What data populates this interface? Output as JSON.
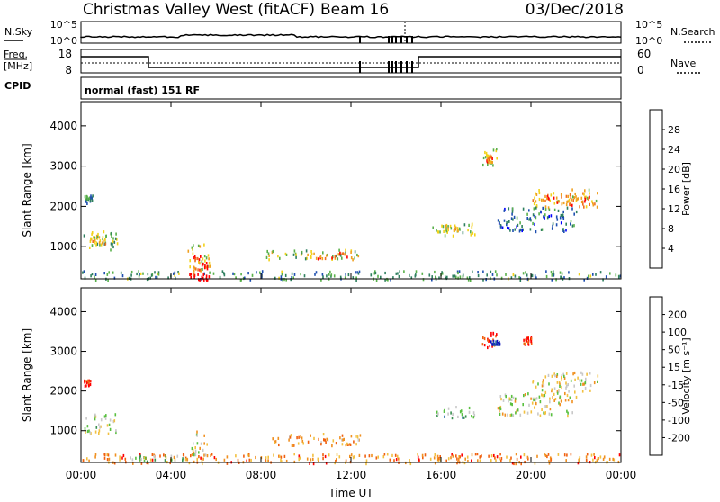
{
  "header": {
    "title": "Christmas Valley West (fitACF)",
    "beam": "Beam 16",
    "date": "03/Dec/2018"
  },
  "top_panels": {
    "nsky_label": "N.Sky",
    "nsearch_label": "N.Search",
    "nsky_ticks": [
      "10^5",
      "10^0"
    ],
    "nsearch_ticks": [
      "10^5",
      "10^0"
    ],
    "freq_label_1": "Freq.",
    "freq_label_2": "[MHz]",
    "freq_ticks": [
      "18",
      "8"
    ],
    "nave_label": "Nave",
    "nave_ticks": [
      "60",
      "0"
    ],
    "cpid_label": "CPID",
    "cpid_text": "normal (fast) 151 RF"
  },
  "chart_data": [
    {
      "type": "heatmap",
      "name": "power",
      "ylabel": "Slant Range [km]",
      "xlabel": "",
      "xlim": [
        0,
        24
      ],
      "ylim": [
        200,
        4600
      ],
      "xticks": [
        "00:00",
        "04:00",
        "08:00",
        "12:00",
        "16:00",
        "20:00",
        "00:00"
      ],
      "xtick_values": [
        0,
        4,
        8,
        12,
        16,
        20,
        24
      ],
      "yticks": [
        "1000",
        "2000",
        "3000",
        "4000"
      ],
      "ytick_values": [
        1000,
        2000,
        3000,
        4000
      ],
      "colorbar": {
        "label": "Power [dB]",
        "ticks": [
          "28",
          "24",
          "20",
          "16",
          "12",
          "8",
          "4"
        ],
        "colors": [
          "#0000ff",
          "#1e4fb0",
          "#2f7f5f",
          "#59b04a",
          "#f2d21a",
          "#f0a020",
          "#f07020",
          "#ff0000"
        ]
      },
      "regions": [
        {
          "t0": 0.1,
          "t1": 1.6,
          "r0": 950,
          "r1": 1450,
          "level": 0.45
        },
        {
          "t0": 0.4,
          "t1": 1.2,
          "r0": 1050,
          "r1": 1300,
          "level": 0.6
        },
        {
          "t0": 0.1,
          "t1": 0.5,
          "r0": 2100,
          "r1": 2300,
          "level": 0.3
        },
        {
          "t0": 4.7,
          "t1": 5.7,
          "r0": 400,
          "r1": 1100,
          "level": 0.55
        },
        {
          "t0": 5.0,
          "t1": 5.6,
          "r0": 400,
          "r1": 800,
          "level": 0.9
        },
        {
          "t0": 8.2,
          "t1": 12.4,
          "r0": 700,
          "r1": 950,
          "level": 0.5
        },
        {
          "t0": 10.0,
          "t1": 12.0,
          "r0": 720,
          "r1": 880,
          "level": 0.8
        },
        {
          "t0": 15.6,
          "t1": 17.5,
          "r0": 1300,
          "r1": 1600,
          "level": 0.45
        },
        {
          "t0": 16.0,
          "t1": 16.8,
          "r0": 1400,
          "r1": 1550,
          "level": 0.6
        },
        {
          "t0": 17.8,
          "t1": 18.5,
          "r0": 3000,
          "r1": 3500,
          "level": 0.55
        },
        {
          "t0": 18.0,
          "t1": 18.3,
          "r0": 3100,
          "r1": 3300,
          "level": 0.75
        },
        {
          "t0": 20.0,
          "t1": 23.0,
          "r0": 2000,
          "r1": 2450,
          "level": 0.65
        },
        {
          "t0": 20.5,
          "t1": 22.7,
          "r0": 2050,
          "r1": 2350,
          "level": 0.85
        },
        {
          "t0": 18.5,
          "t1": 22.0,
          "r0": 1400,
          "r1": 2000,
          "level": 0.25
        },
        {
          "t0": 0.0,
          "t1": 24.0,
          "r0": 200,
          "r1": 420,
          "level": 0.35
        },
        {
          "t0": 4.8,
          "t1": 5.8,
          "r0": 200,
          "r1": 350,
          "level": 1.0
        }
      ]
    },
    {
      "type": "heatmap",
      "name": "velocity",
      "ylabel": "Slant Range [km]",
      "xlabel": "Time UT",
      "xlim": [
        0,
        24
      ],
      "ylim": [
        200,
        4600
      ],
      "xticks": [
        "00:00",
        "04:00",
        "08:00",
        "12:00",
        "16:00",
        "20:00",
        "00:00"
      ],
      "xtick_values": [
        0,
        4,
        8,
        12,
        16,
        20,
        24
      ],
      "yticks": [
        "1000",
        "2000",
        "3000",
        "4000"
      ],
      "ytick_values": [
        1000,
        2000,
        3000,
        4000
      ],
      "colorbar": {
        "label": "Velocity [m s⁻¹]",
        "ticks": [
          "200",
          "100",
          "50",
          "15",
          "-15",
          "-50",
          "-100",
          "-200"
        ],
        "colors": [
          "#ff0000",
          "#f06010",
          "#f09020",
          "#f2c040",
          "#c8c8c8",
          "#59c040",
          "#3a9050",
          "#2060a0",
          "#1010c0"
        ]
      },
      "regions": [
        {
          "t0": 0.1,
          "t1": 1.6,
          "r0": 950,
          "r1": 1450,
          "level": 0.5
        },
        {
          "t0": 0.1,
          "t1": 0.4,
          "r0": 2150,
          "r1": 2300,
          "level": 0.0
        },
        {
          "t0": 4.9,
          "t1": 5.6,
          "r0": 400,
          "r1": 1100,
          "level": 0.45
        },
        {
          "t0": 8.2,
          "t1": 12.4,
          "r0": 650,
          "r1": 950,
          "level": 0.3
        },
        {
          "t0": 15.6,
          "t1": 17.5,
          "r0": 1350,
          "r1": 1650,
          "level": 0.62
        },
        {
          "t0": 17.8,
          "t1": 18.5,
          "r0": 3100,
          "r1": 3500,
          "level": 0.05
        },
        {
          "t0": 18.2,
          "t1": 18.6,
          "r0": 3200,
          "r1": 3300,
          "level": 1.0
        },
        {
          "t0": 19.6,
          "t1": 20.0,
          "r0": 3200,
          "r1": 3400,
          "level": 0.05
        },
        {
          "t0": 20.0,
          "t1": 23.0,
          "r0": 2000,
          "r1": 2500,
          "level": 0.45
        },
        {
          "t0": 18.5,
          "t1": 22.0,
          "r0": 1400,
          "r1": 2000,
          "level": 0.45
        },
        {
          "t0": 0.0,
          "t1": 24.0,
          "r0": 200,
          "r1": 450,
          "level": 0.25
        },
        {
          "t0": 2.0,
          "t1": 4.5,
          "r0": 200,
          "r1": 400,
          "level": 0.6
        }
      ]
    }
  ]
}
